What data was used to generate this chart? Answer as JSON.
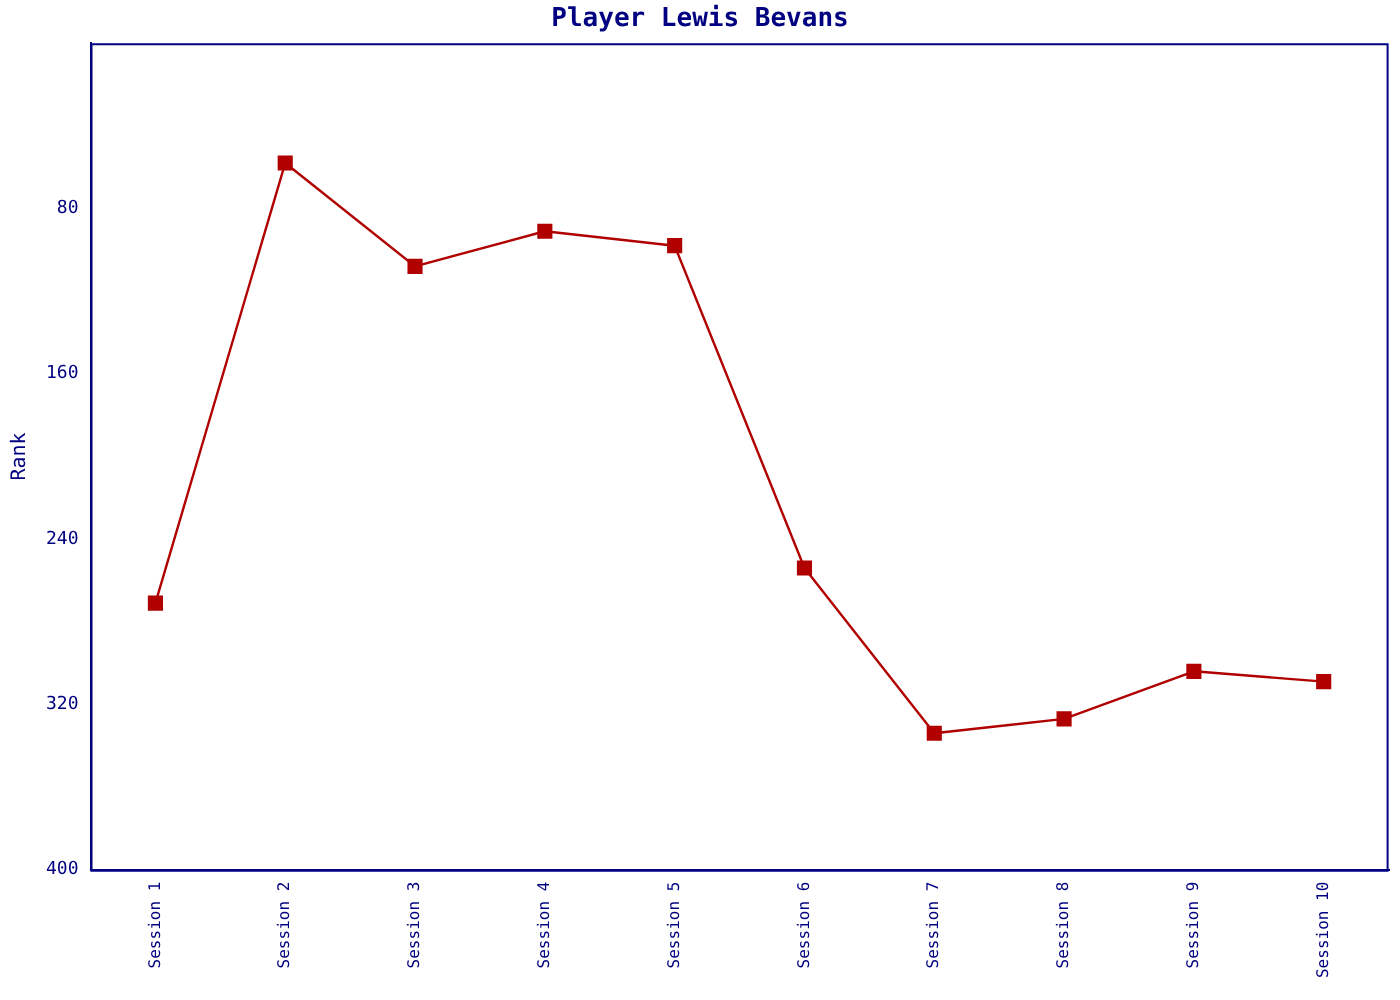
{
  "chart_data": {
    "type": "line",
    "title": "Player Lewis Bevans",
    "ylabel": "Rank",
    "categories": [
      "Session 1",
      "Session 2",
      "Session 3",
      "Session 4",
      "Session 5",
      "Session 6",
      "Session 7",
      "Session 8",
      "Session 9",
      "Session 10"
    ],
    "series": [
      {
        "color": "#b00000",
        "values": [
          271,
          58,
          108,
          91,
          98,
          254,
          334,
          327,
          304,
          309
        ]
      }
    ],
    "ylim": [
      400,
      0
    ],
    "yticks": [
      80,
      160,
      240,
      320,
      400
    ],
    "grid": false,
    "legend": false,
    "marker": "square",
    "line_style": "solid"
  }
}
